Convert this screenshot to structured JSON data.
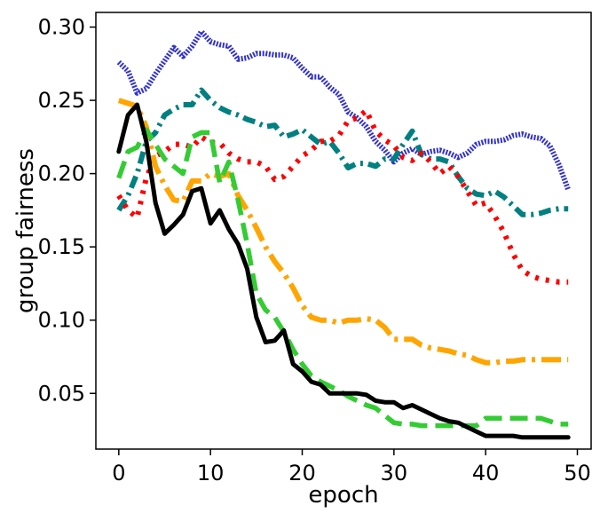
{
  "chart_data": {
    "type": "line",
    "xlabel": "epoch",
    "ylabel": "group fairness",
    "xlim": [
      -2.5,
      51.5
    ],
    "ylim": [
      0.012,
      0.31
    ],
    "x_ticks": [
      0,
      10,
      20,
      30,
      40,
      50
    ],
    "x_tick_labels": [
      "0",
      "10",
      "20",
      "30",
      "40",
      "50"
    ],
    "y_ticks": [
      0.05,
      0.1,
      0.15,
      0.2,
      0.25,
      0.3
    ],
    "y_tick_labels": [
      "0.05",
      "0.10",
      "0.15",
      "0.20",
      "0.25",
      "0.30"
    ],
    "grid": false,
    "legend": "none",
    "series": [
      {
        "style": "dense-dotted",
        "color": "#3333cc",
        "x": [
          0,
          1,
          2,
          3,
          4,
          5,
          6,
          7,
          8,
          9,
          10,
          11,
          12,
          13,
          14,
          15,
          16,
          17,
          18,
          19,
          20,
          21,
          22,
          23,
          24,
          25,
          26,
          27,
          28,
          29,
          30,
          31,
          32,
          33,
          34,
          35,
          36,
          37,
          38,
          39,
          40,
          41,
          42,
          43,
          44,
          45,
          46,
          47,
          48,
          49
        ],
        "values": [
          0.276,
          0.27,
          0.255,
          0.258,
          0.268,
          0.277,
          0.286,
          0.28,
          0.287,
          0.297,
          0.29,
          0.288,
          0.287,
          0.278,
          0.279,
          0.282,
          0.282,
          0.281,
          0.281,
          0.279,
          0.272,
          0.266,
          0.266,
          0.259,
          0.254,
          0.242,
          0.238,
          0.232,
          0.222,
          0.216,
          0.208,
          0.214,
          0.217,
          0.213,
          0.215,
          0.216,
          0.214,
          0.211,
          0.214,
          0.22,
          0.222,
          0.222,
          0.223,
          0.226,
          0.227,
          0.225,
          0.224,
          0.219,
          0.206,
          0.189
        ]
      },
      {
        "style": "dash-dot",
        "color": "#008080",
        "x": [
          0,
          1,
          2,
          3,
          4,
          5,
          6,
          7,
          8,
          9,
          10,
          11,
          12,
          13,
          14,
          15,
          16,
          17,
          18,
          19,
          20,
          21,
          22,
          23,
          24,
          25,
          26,
          27,
          28,
          29,
          30,
          31,
          32,
          33,
          34,
          35,
          36,
          37,
          38,
          39,
          40,
          41,
          42,
          43,
          44,
          45,
          46,
          47,
          48,
          49
        ],
        "values": [
          0.175,
          0.185,
          0.2,
          0.222,
          0.228,
          0.24,
          0.244,
          0.247,
          0.247,
          0.257,
          0.25,
          0.245,
          0.242,
          0.24,
          0.237,
          0.235,
          0.232,
          0.233,
          0.225,
          0.227,
          0.23,
          0.225,
          0.22,
          0.222,
          0.214,
          0.204,
          0.207,
          0.207,
          0.205,
          0.21,
          0.21,
          0.22,
          0.229,
          0.213,
          0.21,
          0.21,
          0.208,
          0.198,
          0.19,
          0.186,
          0.185,
          0.188,
          0.184,
          0.178,
          0.172,
          0.172,
          0.173,
          0.175,
          0.176,
          0.176
        ]
      },
      {
        "style": "dotted",
        "color": "#ff0000",
        "x": [
          0,
          1,
          2,
          3,
          4,
          5,
          6,
          7,
          8,
          9,
          10,
          11,
          12,
          13,
          14,
          15,
          16,
          17,
          18,
          19,
          20,
          21,
          22,
          23,
          24,
          25,
          26,
          27,
          28,
          29,
          30,
          31,
          32,
          33,
          34,
          35,
          36,
          37,
          38,
          39,
          40,
          41,
          42,
          43,
          44,
          45,
          46,
          47,
          48,
          49
        ],
        "values": [
          0.185,
          0.175,
          0.17,
          0.197,
          0.212,
          0.215,
          0.22,
          0.22,
          0.218,
          0.225,
          0.221,
          0.221,
          0.214,
          0.21,
          0.208,
          0.208,
          0.205,
          0.196,
          0.198,
          0.205,
          0.212,
          0.216,
          0.222,
          0.222,
          0.226,
          0.236,
          0.238,
          0.243,
          0.229,
          0.223,
          0.219,
          0.211,
          0.209,
          0.214,
          0.208,
          0.2,
          0.205,
          0.198,
          0.188,
          0.178,
          0.18,
          0.171,
          0.16,
          0.145,
          0.134,
          0.13,
          0.128,
          0.127,
          0.126,
          0.126
        ]
      },
      {
        "style": "long-dash-dot",
        "color": "#ffa500",
        "x": [
          0,
          1,
          2,
          3,
          4,
          5,
          6,
          7,
          8,
          9,
          10,
          11,
          12,
          13,
          14,
          15,
          16,
          17,
          18,
          19,
          20,
          21,
          22,
          23,
          24,
          25,
          26,
          27,
          28,
          29,
          30,
          31,
          32,
          33,
          34,
          35,
          36,
          37,
          38,
          39,
          40,
          41,
          42,
          43,
          44,
          45,
          46,
          47,
          48,
          49
        ],
        "values": [
          0.25,
          0.248,
          0.246,
          0.232,
          0.205,
          0.192,
          0.182,
          0.181,
          0.195,
          0.195,
          0.2,
          0.198,
          0.2,
          0.185,
          0.175,
          0.163,
          0.15,
          0.14,
          0.132,
          0.122,
          0.11,
          0.102,
          0.1,
          0.1,
          0.098,
          0.1,
          0.1,
          0.101,
          0.1,
          0.095,
          0.087,
          0.087,
          0.087,
          0.083,
          0.081,
          0.08,
          0.079,
          0.077,
          0.076,
          0.073,
          0.071,
          0.071,
          0.072,
          0.072,
          0.073,
          0.073,
          0.073,
          0.073,
          0.073,
          0.073
        ]
      },
      {
        "style": "dashed",
        "color": "#33cc33",
        "x": [
          0,
          1,
          2,
          3,
          4,
          5,
          6,
          7,
          8,
          9,
          10,
          11,
          12,
          13,
          14,
          15,
          16,
          17,
          18,
          19,
          20,
          21,
          22,
          23,
          24,
          25,
          26,
          27,
          28,
          29,
          30,
          31,
          32,
          33,
          34,
          35,
          36,
          37,
          38,
          39,
          40,
          41,
          42,
          43,
          44,
          45,
          46,
          47,
          48,
          49
        ],
        "values": [
          0.197,
          0.215,
          0.218,
          0.23,
          0.22,
          0.21,
          0.205,
          0.2,
          0.225,
          0.228,
          0.228,
          0.194,
          0.208,
          0.182,
          0.152,
          0.118,
          0.107,
          0.102,
          0.092,
          0.08,
          0.07,
          0.062,
          0.058,
          0.055,
          0.052,
          0.048,
          0.045,
          0.042,
          0.04,
          0.035,
          0.03,
          0.029,
          0.029,
          0.028,
          0.028,
          0.028,
          0.028,
          0.028,
          0.028,
          0.028,
          0.033,
          0.033,
          0.033,
          0.033,
          0.033,
          0.033,
          0.033,
          0.031,
          0.029,
          0.029
        ]
      },
      {
        "style": "solid",
        "color": "#000000",
        "x": [
          0,
          1,
          2,
          3,
          4,
          5,
          6,
          7,
          8,
          9,
          10,
          11,
          12,
          13,
          14,
          15,
          16,
          17,
          18,
          19,
          20,
          21,
          22,
          23,
          24,
          25,
          26,
          27,
          28,
          29,
          30,
          31,
          32,
          33,
          34,
          35,
          36,
          37,
          38,
          39,
          40,
          41,
          42,
          43,
          44,
          45,
          46,
          47,
          48,
          49
        ],
        "values": [
          0.215,
          0.24,
          0.247,
          0.222,
          0.18,
          0.159,
          0.165,
          0.172,
          0.188,
          0.19,
          0.166,
          0.175,
          0.162,
          0.152,
          0.135,
          0.102,
          0.085,
          0.086,
          0.093,
          0.07,
          0.065,
          0.058,
          0.056,
          0.05,
          0.05,
          0.05,
          0.05,
          0.049,
          0.045,
          0.044,
          0.044,
          0.04,
          0.042,
          0.039,
          0.036,
          0.033,
          0.031,
          0.03,
          0.027,
          0.024,
          0.021,
          0.021,
          0.021,
          0.021,
          0.02,
          0.02,
          0.02,
          0.02,
          0.02,
          0.02
        ]
      }
    ]
  }
}
